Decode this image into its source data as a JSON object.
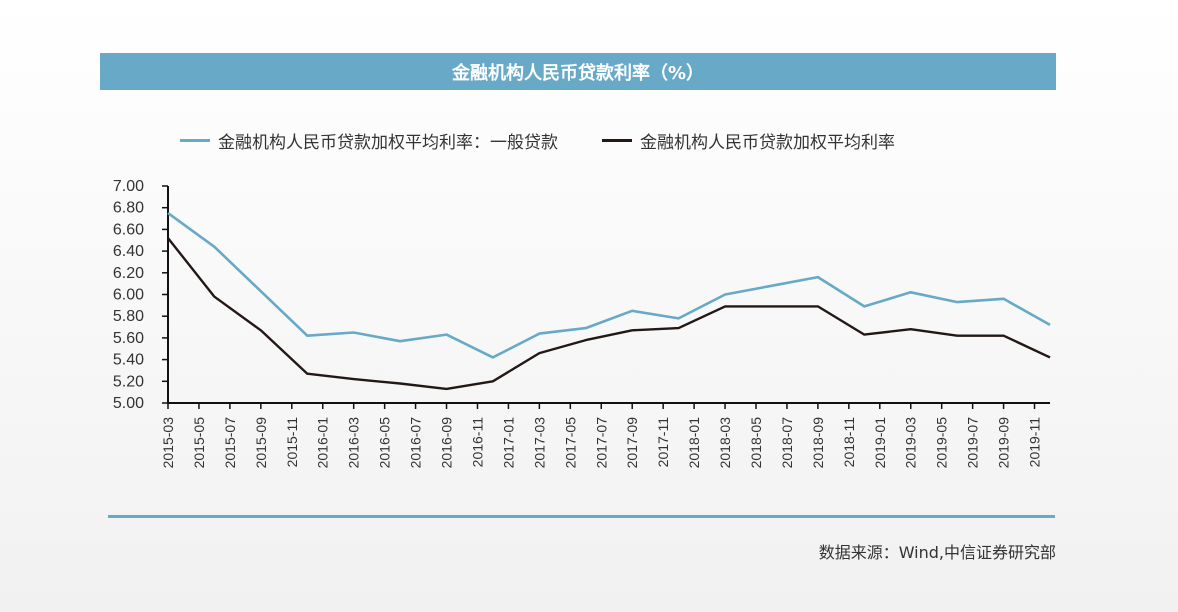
{
  "header": {
    "title": "金融机构人民币贷款利率（%）"
  },
  "footer": {
    "source": "数据来源：Wind,中信证券研究部"
  },
  "colors": {
    "general": "#67a9c6",
    "weighted": "#231815",
    "accent_bar": "#67a9c6"
  },
  "chart_data": {
    "type": "line",
    "title": "金融机构人民币贷款利率（%）",
    "ylim": [
      5.0,
      7.0
    ],
    "yticks": [
      "7.00",
      "6.80",
      "6.60",
      "6.40",
      "6.20",
      "6.00",
      "5.80",
      "5.60",
      "5.40",
      "5.20",
      "5.00"
    ],
    "x_ticks": [
      "2015-03",
      "2015-05",
      "2015-07",
      "2015-09",
      "2015-11",
      "2016-01",
      "2016-03",
      "2016-05",
      "2016-07",
      "2016-09",
      "2016-11",
      "2017-01",
      "2017-03",
      "2017-05",
      "2017-07",
      "2017-09",
      "2017-11",
      "2018-01",
      "2018-03",
      "2018-05",
      "2018-07",
      "2018-09",
      "2018-11",
      "2019-01",
      "2019-03",
      "2019-05",
      "2019-07",
      "2019-09",
      "2019-11"
    ],
    "x_range": [
      "2015-03",
      "2019-12"
    ],
    "legend_position": "top",
    "series": [
      {
        "name": "金融机构人民币贷款加权平均利率：一般贷款",
        "color": "#67a9c6",
        "points": [
          [
            "2015-03",
            6.75
          ],
          [
            "2015-06",
            6.44
          ],
          [
            "2015-09",
            6.03
          ],
          [
            "2015-12",
            5.62
          ],
          [
            "2016-03",
            5.65
          ],
          [
            "2016-06",
            5.57
          ],
          [
            "2016-09",
            5.63
          ],
          [
            "2016-12",
            5.42
          ],
          [
            "2017-03",
            5.64
          ],
          [
            "2017-06",
            5.69
          ],
          [
            "2017-09",
            5.85
          ],
          [
            "2017-12",
            5.78
          ],
          [
            "2018-03",
            6.0
          ],
          [
            "2018-06",
            6.08
          ],
          [
            "2018-09",
            6.16
          ],
          [
            "2018-12",
            5.89
          ],
          [
            "2019-03",
            6.02
          ],
          [
            "2019-06",
            5.93
          ],
          [
            "2019-09",
            5.96
          ],
          [
            "2019-12",
            5.72
          ]
        ]
      },
      {
        "name": "金融机构人民币贷款加权平均利率",
        "color": "#231815",
        "points": [
          [
            "2015-03",
            6.52
          ],
          [
            "2015-06",
            5.98
          ],
          [
            "2015-09",
            5.67
          ],
          [
            "2015-12",
            5.27
          ],
          [
            "2016-03",
            5.22
          ],
          [
            "2016-06",
            5.18
          ],
          [
            "2016-09",
            5.13
          ],
          [
            "2016-12",
            5.2
          ],
          [
            "2017-03",
            5.46
          ],
          [
            "2017-06",
            5.58
          ],
          [
            "2017-09",
            5.67
          ],
          [
            "2017-12",
            5.69
          ],
          [
            "2018-03",
            5.89
          ],
          [
            "2018-06",
            5.89
          ],
          [
            "2018-09",
            5.89
          ],
          [
            "2018-12",
            5.63
          ],
          [
            "2019-03",
            5.68
          ],
          [
            "2019-06",
            5.62
          ],
          [
            "2019-09",
            5.62
          ],
          [
            "2019-12",
            5.42
          ]
        ]
      }
    ]
  }
}
